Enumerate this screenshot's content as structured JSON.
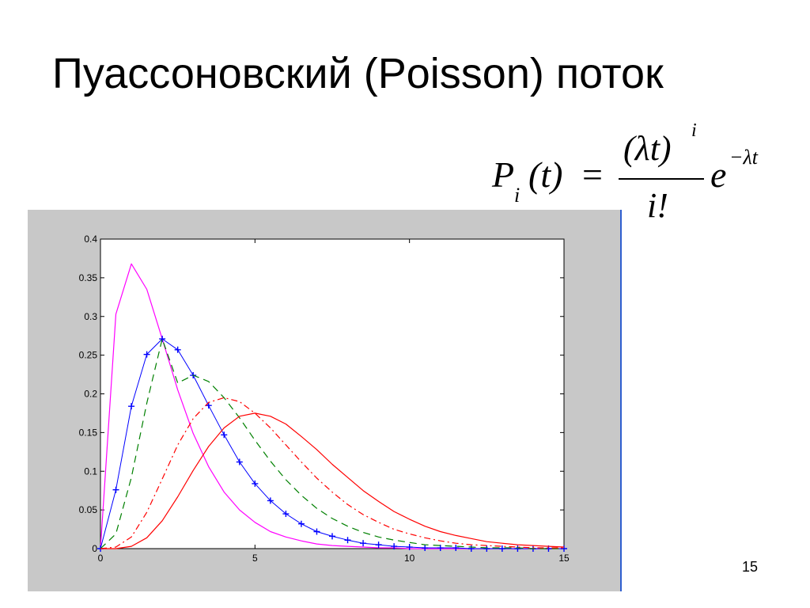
{
  "slide": {
    "title": "Пуассоновский (Poisson) поток",
    "page_number": "15"
  },
  "formula": {
    "lhs_P": "P",
    "lhs_sub": "i",
    "lhs_arg": "(t)",
    "eq": "=",
    "numerator": "(λt)",
    "numerator_power": "i",
    "denominator": "i!",
    "exp_base": "e",
    "exp_power": "−λt"
  },
  "chart_data": {
    "type": "line",
    "title": "",
    "xlabel": "",
    "ylabel": "",
    "xlim": [
      0,
      15
    ],
    "ylim": [
      0,
      0.4
    ],
    "x_ticks": [
      0,
      5,
      10,
      15
    ],
    "y_ticks": [
      0,
      0.05,
      0.1,
      0.15,
      0.2,
      0.25,
      0.3,
      0.35,
      0.4
    ],
    "x_tick_labels": [
      "0",
      "5",
      "10",
      "15"
    ],
    "y_tick_labels": [
      "0",
      "0.05",
      "0.1",
      "0.15",
      "0.2",
      "0.25",
      "0.3",
      "0.35",
      "0.4"
    ],
    "grid": false,
    "legend": "none",
    "x": [
      0,
      0.5,
      1,
      1.5,
      2,
      2.5,
      3,
      3.5,
      4,
      4.5,
      5,
      5.5,
      6,
      6.5,
      7,
      7.5,
      8,
      8.5,
      9,
      9.5,
      10,
      10.5,
      11,
      11.5,
      12,
      12.5,
      13,
      13.5,
      14,
      14.5,
      15
    ],
    "series": [
      {
        "color": "#ff00ff",
        "style": "solid",
        "values": [
          0,
          0.303,
          0.368,
          0.335,
          0.271,
          0.205,
          0.149,
          0.106,
          0.073,
          0.05,
          0.034,
          0.022,
          0.015,
          0.01,
          0.006,
          0.004,
          0.003,
          0.002,
          0.001,
          0.001,
          0,
          0,
          0,
          0,
          0,
          0,
          0,
          0,
          0,
          0,
          0
        ]
      },
      {
        "color": "#0000ff",
        "style": "plus",
        "values": [
          0,
          0.076,
          0.184,
          0.251,
          0.271,
          0.257,
          0.224,
          0.185,
          0.147,
          0.112,
          0.084,
          0.062,
          0.045,
          0.032,
          0.022,
          0.016,
          0.011,
          0.007,
          0.005,
          0.003,
          0.002,
          0.001,
          0.001,
          0.001,
          0,
          0,
          0,
          0,
          0,
          0,
          0
        ]
      },
      {
        "color": "#008000",
        "style": "dashed",
        "values": [
          0,
          0.019,
          0.092,
          0.188,
          0.271,
          0.214,
          0.224,
          0.216,
          0.195,
          0.169,
          0.14,
          0.113,
          0.089,
          0.069,
          0.052,
          0.039,
          0.029,
          0.021,
          0.015,
          0.011,
          0.008,
          0.005,
          0.004,
          0.003,
          0.002,
          0.001,
          0.001,
          0.001,
          0,
          0,
          0
        ]
      },
      {
        "color": "#ff0000",
        "style": "dashdot",
        "values": [
          0,
          0.002,
          0.015,
          0.047,
          0.09,
          0.134,
          0.168,
          0.189,
          0.195,
          0.19,
          0.175,
          0.156,
          0.134,
          0.112,
          0.091,
          0.073,
          0.057,
          0.044,
          0.034,
          0.025,
          0.019,
          0.014,
          0.01,
          0.007,
          0.005,
          0.004,
          0.003,
          0.002,
          0.001,
          0.001,
          0.001
        ]
      },
      {
        "color": "#ff0000",
        "style": "solid",
        "values": [
          0,
          0,
          0.003,
          0.014,
          0.036,
          0.067,
          0.101,
          0.132,
          0.156,
          0.171,
          0.175,
          0.171,
          0.161,
          0.145,
          0.128,
          0.109,
          0.092,
          0.075,
          0.061,
          0.048,
          0.038,
          0.029,
          0.022,
          0.017,
          0.013,
          0.009,
          0.007,
          0.005,
          0.004,
          0.003,
          0.002
        ]
      }
    ]
  }
}
